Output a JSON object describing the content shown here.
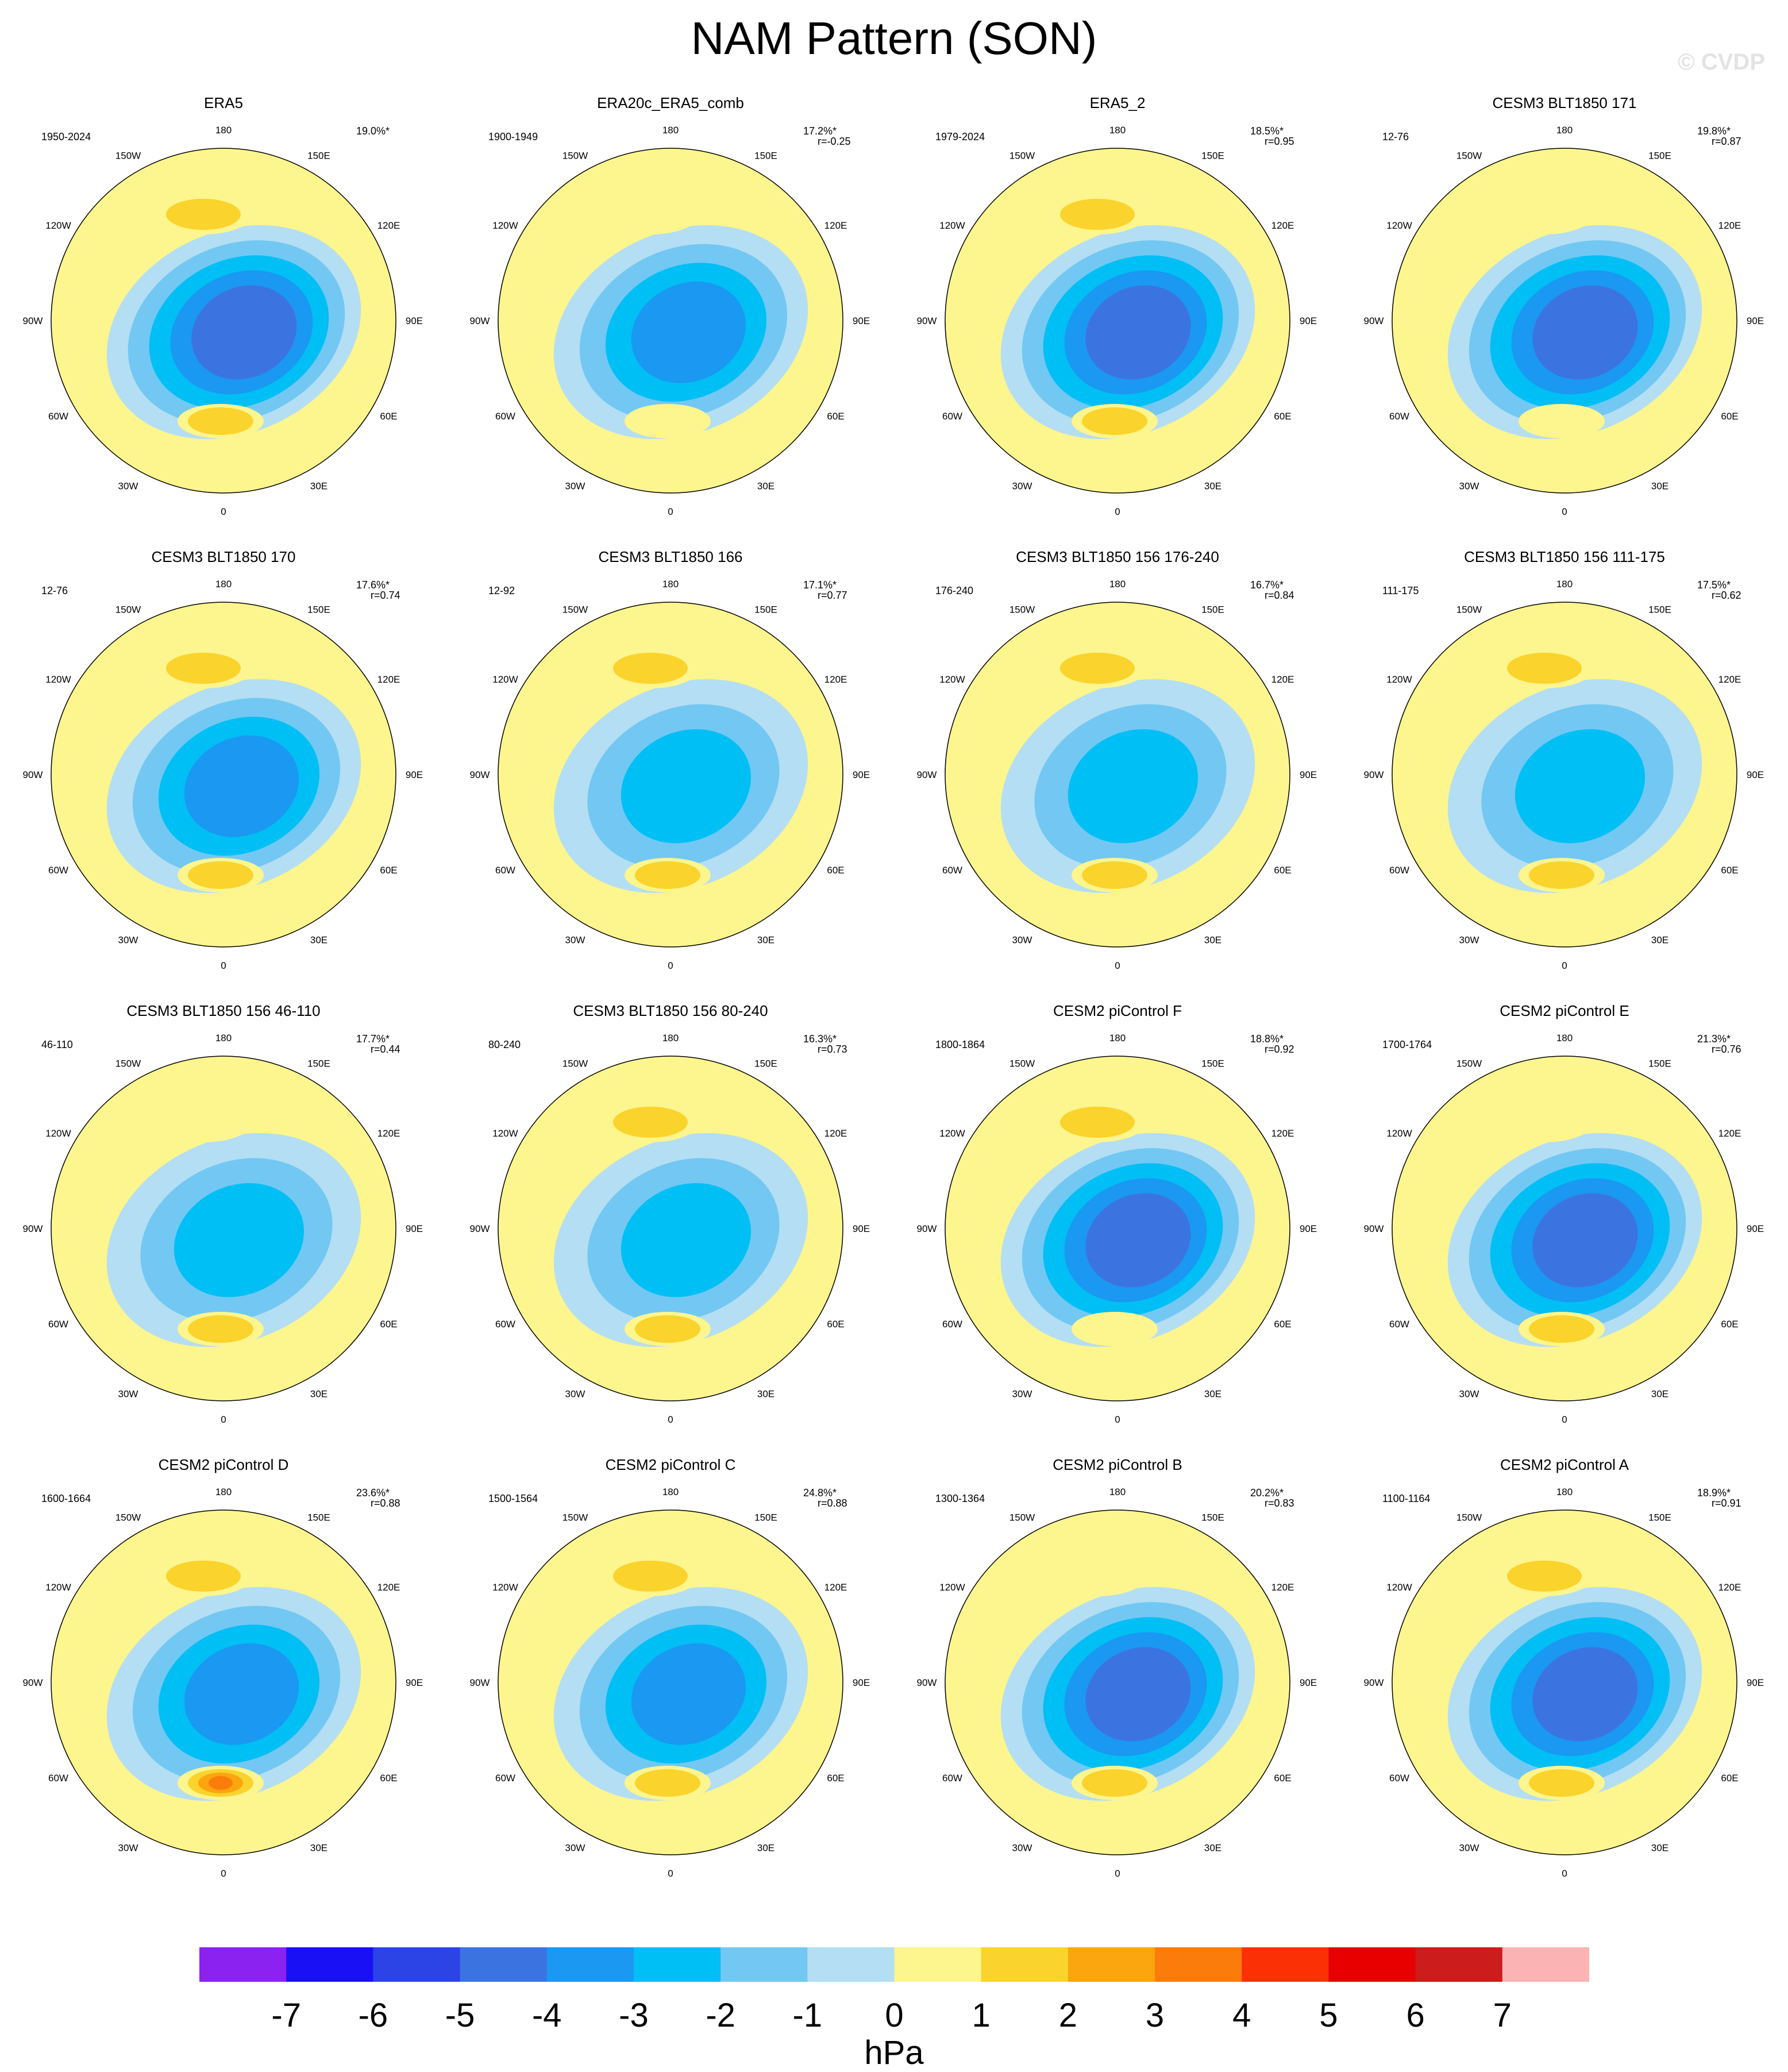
{
  "title": "NAM Pattern (SON)",
  "watermark": "© CVDP",
  "lon_labels": [
    "180",
    "150E",
    "120E",
    "90E",
    "60E",
    "30E",
    "0",
    "30W",
    "60W",
    "90W",
    "120W",
    "150W"
  ],
  "colors": {
    "levels": [
      "#8b22f0",
      "#1a10f5",
      "#2c43e6",
      "#3b74e0",
      "#1a98f2",
      "#00bff4",
      "#72c8f3",
      "#b4def3",
      "#fdf58e",
      "#fad32c",
      "#fba50f",
      "#fb7c0a",
      "#fb3004",
      "#e80000",
      "#cc1c1c",
      "#fbb3b3"
    ],
    "coast": "#555555"
  },
  "colorbar": {
    "ticks": [
      "-7",
      "-6",
      "-5",
      "-4",
      "-3",
      "-2",
      "-1",
      "0",
      "1",
      "2",
      "3",
      "4",
      "5",
      "6",
      "7"
    ],
    "units": "hPa"
  },
  "chart_data": {
    "type": "heatmap",
    "projection": "polar stereographic (northern hemisphere)",
    "field": "NAM Pattern (SON)",
    "units": "hPa",
    "contour_levels": [
      -7,
      -6,
      -5,
      -4,
      -3,
      -2,
      -1,
      0,
      1,
      2,
      3,
      4,
      5,
      6,
      7
    ],
    "panels": [
      {
        "name": "ERA5",
        "years": "1950-2024",
        "pct": "19.0%*",
        "r": "",
        "pole_min_hPa": -4.5,
        "atlantic_max_hPa": 1.5,
        "pacific_max_hPa": 1.5
      },
      {
        "name": "ERA20c_ERA5_comb",
        "years": "1900-1949",
        "pct": "17.2%*",
        "r": "r=-0.25",
        "pole_min_hPa": -3.5,
        "atlantic_max_hPa": 0.5,
        "pacific_max_hPa": 0.5
      },
      {
        "name": "ERA5_2",
        "years": "1979-2024",
        "pct": "18.5%*",
        "r": "r=0.95",
        "pole_min_hPa": -4.5,
        "atlantic_max_hPa": 1.5,
        "pacific_max_hPa": 1.5
      },
      {
        "name": "CESM3 BLT1850 171",
        "years": "12-76",
        "pct": "19.8%*",
        "r": "r=0.87",
        "pole_min_hPa": -4.5,
        "atlantic_max_hPa": 0.5,
        "pacific_max_hPa": 0.5
      },
      {
        "name": "CESM3 BLT1850 170",
        "years": "12-76",
        "pct": "17.6%*",
        "r": "r=0.74",
        "pole_min_hPa": -3.5,
        "atlantic_max_hPa": 1.5,
        "pacific_max_hPa": 1.5
      },
      {
        "name": "CESM3 BLT1850 166",
        "years": "12-92",
        "pct": "17.1%*",
        "r": "r=0.77",
        "pole_min_hPa": -2.5,
        "atlantic_max_hPa": 1.5,
        "pacific_max_hPa": 1.5
      },
      {
        "name": "CESM3 BLT1850 156 176-240",
        "years": "176-240",
        "pct": "16.7%*",
        "r": "r=0.84",
        "pole_min_hPa": -2.5,
        "atlantic_max_hPa": 1.5,
        "pacific_max_hPa": 1.5
      },
      {
        "name": "CESM3 BLT1850 156 111-175",
        "years": "111-175",
        "pct": "17.5%*",
        "r": "r=0.62",
        "pole_min_hPa": -2.5,
        "atlantic_max_hPa": 1.5,
        "pacific_max_hPa": 1.5
      },
      {
        "name": "CESM3 BLT1850 156 46-110",
        "years": "46-110",
        "pct": "17.7%*",
        "r": "r=0.44",
        "pole_min_hPa": -2.5,
        "atlantic_max_hPa": 1.5,
        "pacific_max_hPa": 0.5
      },
      {
        "name": "CESM3 BLT1850 156 80-240",
        "years": "80-240",
        "pct": "16.3%*",
        "r": "r=0.73",
        "pole_min_hPa": -2.5,
        "atlantic_max_hPa": 1.5,
        "pacific_max_hPa": 1.5
      },
      {
        "name": "CESM2 piControl F",
        "years": "1800-1864",
        "pct": "18.8%*",
        "r": "r=0.92",
        "pole_min_hPa": -4.5,
        "atlantic_max_hPa": 0.5,
        "pacific_max_hPa": 1.5
      },
      {
        "name": "CESM2 piControl E",
        "years": "1700-1764",
        "pct": "21.3%*",
        "r": "r=0.76",
        "pole_min_hPa": -4.5,
        "atlantic_max_hPa": 1.5,
        "pacific_max_hPa": 0.5
      },
      {
        "name": "CESM2 piControl D",
        "years": "1600-1664",
        "pct": "23.6%*",
        "r": "r=0.88",
        "pole_min_hPa": -3.5,
        "atlantic_max_hPa": 3.5,
        "pacific_max_hPa": 1.5
      },
      {
        "name": "CESM2 piControl C",
        "years": "1500-1564",
        "pct": "24.8%*",
        "r": "r=0.88",
        "pole_min_hPa": -3.5,
        "atlantic_max_hPa": 1.5,
        "pacific_max_hPa": 1.5
      },
      {
        "name": "CESM2 piControl B",
        "years": "1300-1364",
        "pct": "20.2%*",
        "r": "r=0.83",
        "pole_min_hPa": -4.5,
        "atlantic_max_hPa": 1.5,
        "pacific_max_hPa": 0.5
      },
      {
        "name": "CESM2 piControl A",
        "years": "1100-1164",
        "pct": "18.9%*",
        "r": "r=0.91",
        "pole_min_hPa": -4.5,
        "atlantic_max_hPa": 1.5,
        "pacific_max_hPa": 1.5
      }
    ]
  }
}
